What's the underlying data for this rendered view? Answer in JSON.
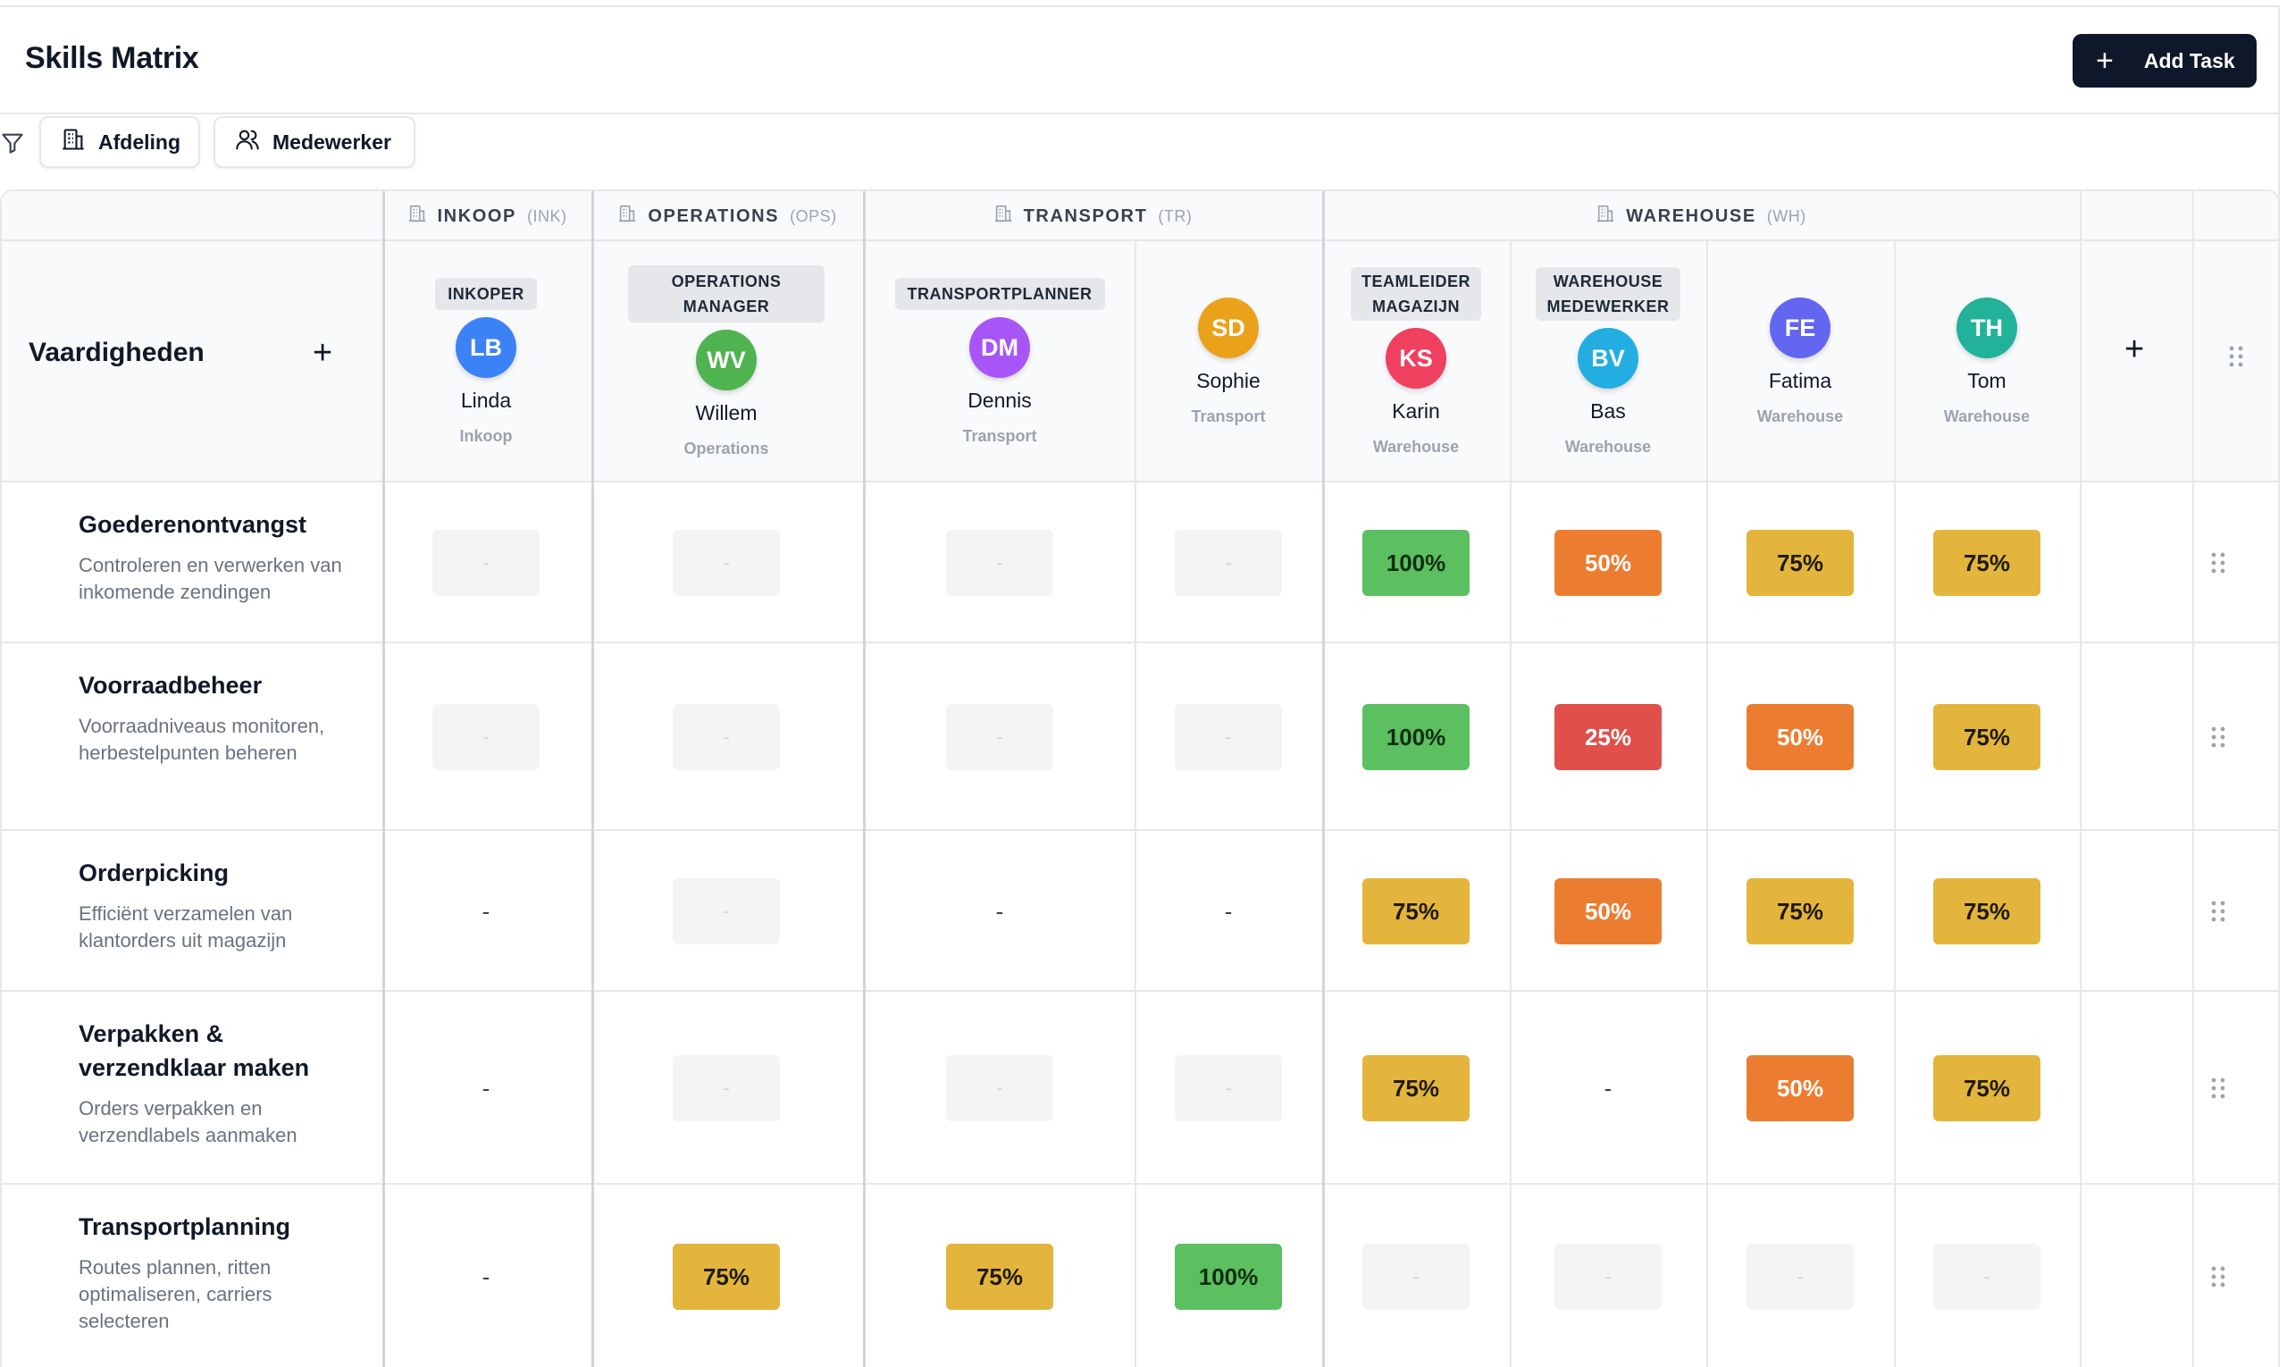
{
  "header": {
    "title": "Skills Matrix",
    "add_task_label": "Add Task",
    "add_task_icon": "plus-icon"
  },
  "filters": [
    {
      "label": "Afdeling",
      "icon": "building-icon"
    },
    {
      "label": "Medewerker",
      "icon": "users-icon"
    }
  ],
  "departments": [
    {
      "name": "INKOOP",
      "code": "(INK)"
    },
    {
      "name": "OPERATIONS",
      "code": "(OPS)"
    },
    {
      "name": "TRANSPORT",
      "code": "(TR)"
    },
    {
      "name": "WAREHOUSE",
      "code": "(WH)"
    }
  ],
  "matrix": {
    "skills_header": "Vaardigheden",
    "add_skill_symbol": "+",
    "add_employee_symbol": "+"
  },
  "employees": [
    {
      "role": "INKOPER",
      "initials": "LB",
      "name": "Linda",
      "dept": "Inkoop",
      "color": "#3b82f6"
    },
    {
      "role": "OPERATIONS MANAGER",
      "initials": "WV",
      "name": "Willem",
      "dept": "Operations",
      "color": "#4fb34f"
    },
    {
      "role": "TRANSPORTPLANNER",
      "initials": "DM",
      "name": "Dennis",
      "dept": "Transport",
      "color": "#a855f7"
    },
    {
      "role": "",
      "initials": "SD",
      "name": "Sophie",
      "dept": "Transport",
      "color": "#eaa21a"
    },
    {
      "role_line1": "TEAMLEIDER",
      "role_line2": "MAGAZIJN",
      "initials": "KS",
      "name": "Karin",
      "dept": "Warehouse",
      "color": "#ef4060"
    },
    {
      "role_line1": "WAREHOUSE",
      "role_line2": "MEDEWERKER",
      "initials": "BV",
      "name": "Bas",
      "dept": "Warehouse",
      "color": "#22aee0"
    },
    {
      "role": "",
      "initials": "FE",
      "name": "Fatima",
      "dept": "Warehouse",
      "color": "#6366f1"
    },
    {
      "role": "",
      "initials": "TH",
      "name": "Tom",
      "dept": "Warehouse",
      "color": "#22b29a"
    }
  ],
  "skills": [
    {
      "name": "Goederenontvangst",
      "desc": "Controleren en verwerken van inkomende zendingen",
      "levels": [
        "-",
        "-",
        "-",
        "-",
        "100%",
        "50%",
        "75%",
        "75%"
      ],
      "kinds": [
        "empty",
        "empty",
        "empty",
        "empty",
        "c100",
        "c50",
        "c75",
        "c75"
      ]
    },
    {
      "name": "Voorraadbeheer",
      "desc": "Voorraadniveaus monitoren, herbestelpunten beheren",
      "levels": [
        "-",
        "-",
        "-",
        "-",
        "100%",
        "25%",
        "50%",
        "75%"
      ],
      "kinds": [
        "empty",
        "empty",
        "empty",
        "empty",
        "c100",
        "c25",
        "c50",
        "c75"
      ]
    },
    {
      "name": "Orderpicking",
      "desc": "Efficiënt verzamelen van klantorders uit magazijn",
      "levels": [
        "-",
        "-",
        "-",
        "-",
        "75%",
        "50%",
        "75%",
        "75%"
      ],
      "kinds": [
        "dash",
        "empty",
        "dash",
        "dash",
        "c75",
        "c50",
        "c75",
        "c75"
      ]
    },
    {
      "name": "Verpakken & verzendklaar maken",
      "desc": "Orders verpakken en verzendlabels aanmaken",
      "levels": [
        "-",
        "-",
        "-",
        "-",
        "75%",
        "-",
        "50%",
        "75%"
      ],
      "kinds": [
        "dash",
        "empty",
        "empty",
        "empty",
        "c75",
        "dash",
        "c50",
        "c75"
      ]
    },
    {
      "name": "Transportplanning",
      "desc": "Routes plannen, ritten optimaliseren, carriers selecteren",
      "levels": [
        "-",
        "75%",
        "75%",
        "100%",
        "-",
        "-",
        "-",
        "-"
      ],
      "kinds": [
        "dash",
        "c75",
        "c75",
        "c100",
        "empty",
        "empty",
        "empty",
        "empty"
      ]
    }
  ]
}
